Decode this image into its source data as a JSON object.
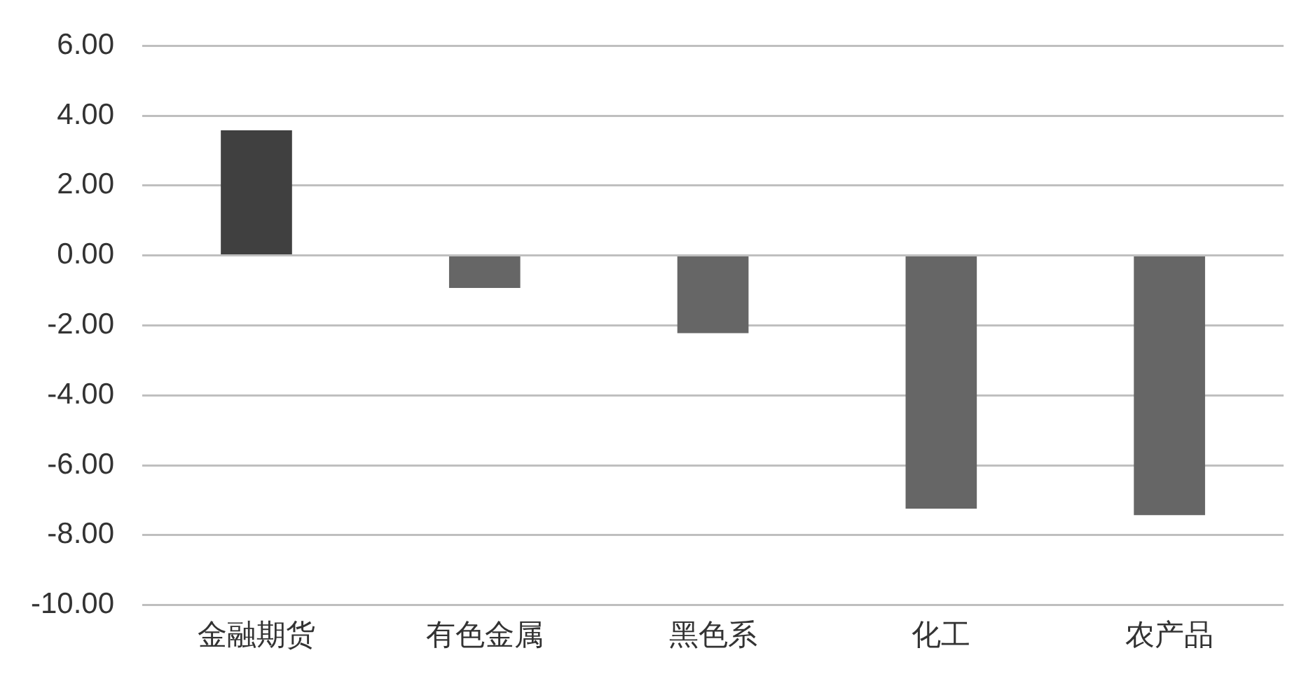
{
  "chart_data": {
    "type": "bar",
    "categories": [
      "金融期货",
      "有色金属",
      "黑色系",
      "化工",
      "农产品"
    ],
    "values": [
      3.58,
      -0.93,
      -2.22,
      -7.24,
      -7.43
    ],
    "colors": [
      "#404040",
      "#666666",
      "#666666",
      "#666666",
      "#666666"
    ],
    "ylim": [
      -10,
      6
    ],
    "yticks": [
      {
        "value": -10,
        "label": "-10.00"
      },
      {
        "value": -8,
        "label": "-8.00"
      },
      {
        "value": -6,
        "label": "-6.00"
      },
      {
        "value": -4,
        "label": "-4.00"
      },
      {
        "value": -2,
        "label": "-2.00"
      },
      {
        "value": 0,
        "label": "0.00"
      },
      {
        "value": 2,
        "label": "2.00"
      },
      {
        "value": 4,
        "label": "4.00"
      },
      {
        "value": 6,
        "label": "6.00"
      }
    ],
    "grid": "y",
    "legend": false
  }
}
